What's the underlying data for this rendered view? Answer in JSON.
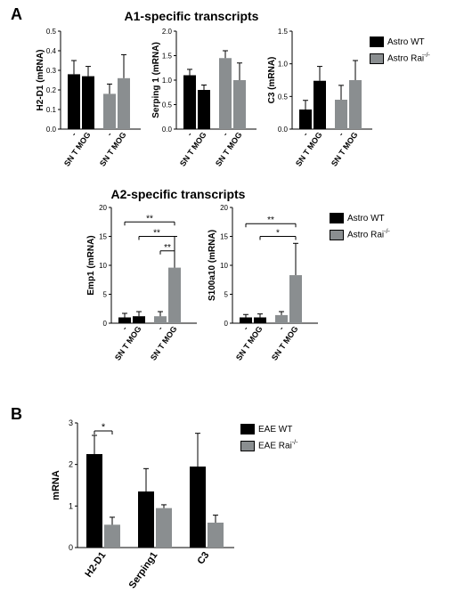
{
  "letters": {
    "a": "A",
    "b": "B"
  },
  "sections": {
    "a1": "A1-specific transcripts",
    "a2": "A2-specific transcripts"
  },
  "legendA": {
    "wt": "Astro WT",
    "rai": "Astro Rai",
    "rai_sup": "-/-"
  },
  "legendB": {
    "wt": "EAE WT",
    "rai": "EAE Rai",
    "rai_sup": "-/-"
  },
  "colors": {
    "wt": "#000000",
    "rai": "#8a8e90",
    "axis": "#000000",
    "bg": "#ffffff",
    "err": "#000000"
  },
  "xlabels": [
    "-",
    "SN T MOG",
    "-",
    "SN T MOG"
  ],
  "panelA": {
    "charts": [
      {
        "ylabel": "H2-D1 (mRNA)",
        "ylim": 0.5,
        "step": 0.1,
        "vals": [
          0.28,
          0.27,
          0.18,
          0.26
        ],
        "errs": [
          0.07,
          0.05,
          0.05,
          0.12
        ]
      },
      {
        "ylabel": "Serping 1 (mRNA)",
        "ylim": 2.0,
        "step": 0.5,
        "vals": [
          1.1,
          0.8,
          1.45,
          1.0
        ],
        "errs": [
          0.12,
          0.1,
          0.15,
          0.35
        ]
      },
      {
        "ylabel": "C3 (mRNA)",
        "ylim": 1.5,
        "step": 0.5,
        "vals": [
          0.3,
          0.74,
          0.45,
          0.75
        ],
        "errs": [
          0.14,
          0.22,
          0.22,
          0.3
        ]
      }
    ]
  },
  "panelA2": {
    "charts": [
      {
        "ylabel": "Emp1 (mRNA)",
        "ylim": 20,
        "step": 5,
        "vals": [
          1.0,
          1.2,
          1.2,
          9.6
        ],
        "errs": [
          0.7,
          0.8,
          0.8,
          5.4
        ],
        "sig": [
          {
            "from": 1,
            "to": 3,
            "h": 15,
            "label": "**"
          },
          {
            "from": 2,
            "to": 3,
            "h": 12.5,
            "label": "**"
          },
          {
            "from": 0,
            "to": 3,
            "h": 17.5,
            "label": "**"
          }
        ]
      },
      {
        "ylabel": "S100a10 (mRNA)",
        "ylim": 20,
        "step": 5,
        "vals": [
          1.0,
          1.0,
          1.4,
          8.3
        ],
        "errs": [
          0.5,
          0.6,
          0.6,
          5.5
        ],
        "sig": [
          {
            "from": 1,
            "to": 3,
            "h": 15,
            "label": "*"
          },
          {
            "from": 0,
            "to": 3,
            "h": 17.2,
            "label": "**"
          }
        ]
      }
    ]
  },
  "panelB": {
    "ylabel": "mRNA",
    "ylim": 3,
    "step": 1,
    "xlabels": [
      "H2-D1",
      "Serping1",
      "C3"
    ],
    "groups": [
      {
        "wt": 2.25,
        "rai": 0.55,
        "ewt": 0.45,
        "erai": 0.18,
        "sig": "*"
      },
      {
        "wt": 1.35,
        "rai": 0.95,
        "ewt": 0.55,
        "erai": 0.08
      },
      {
        "wt": 1.95,
        "rai": 0.6,
        "ewt": 0.8,
        "erai": 0.18
      }
    ]
  },
  "geom": {
    "barW": 14,
    "gap": 2,
    "groupGap": 10,
    "axisFont": 9,
    "tickFont": 8,
    "labelFont": 10
  }
}
